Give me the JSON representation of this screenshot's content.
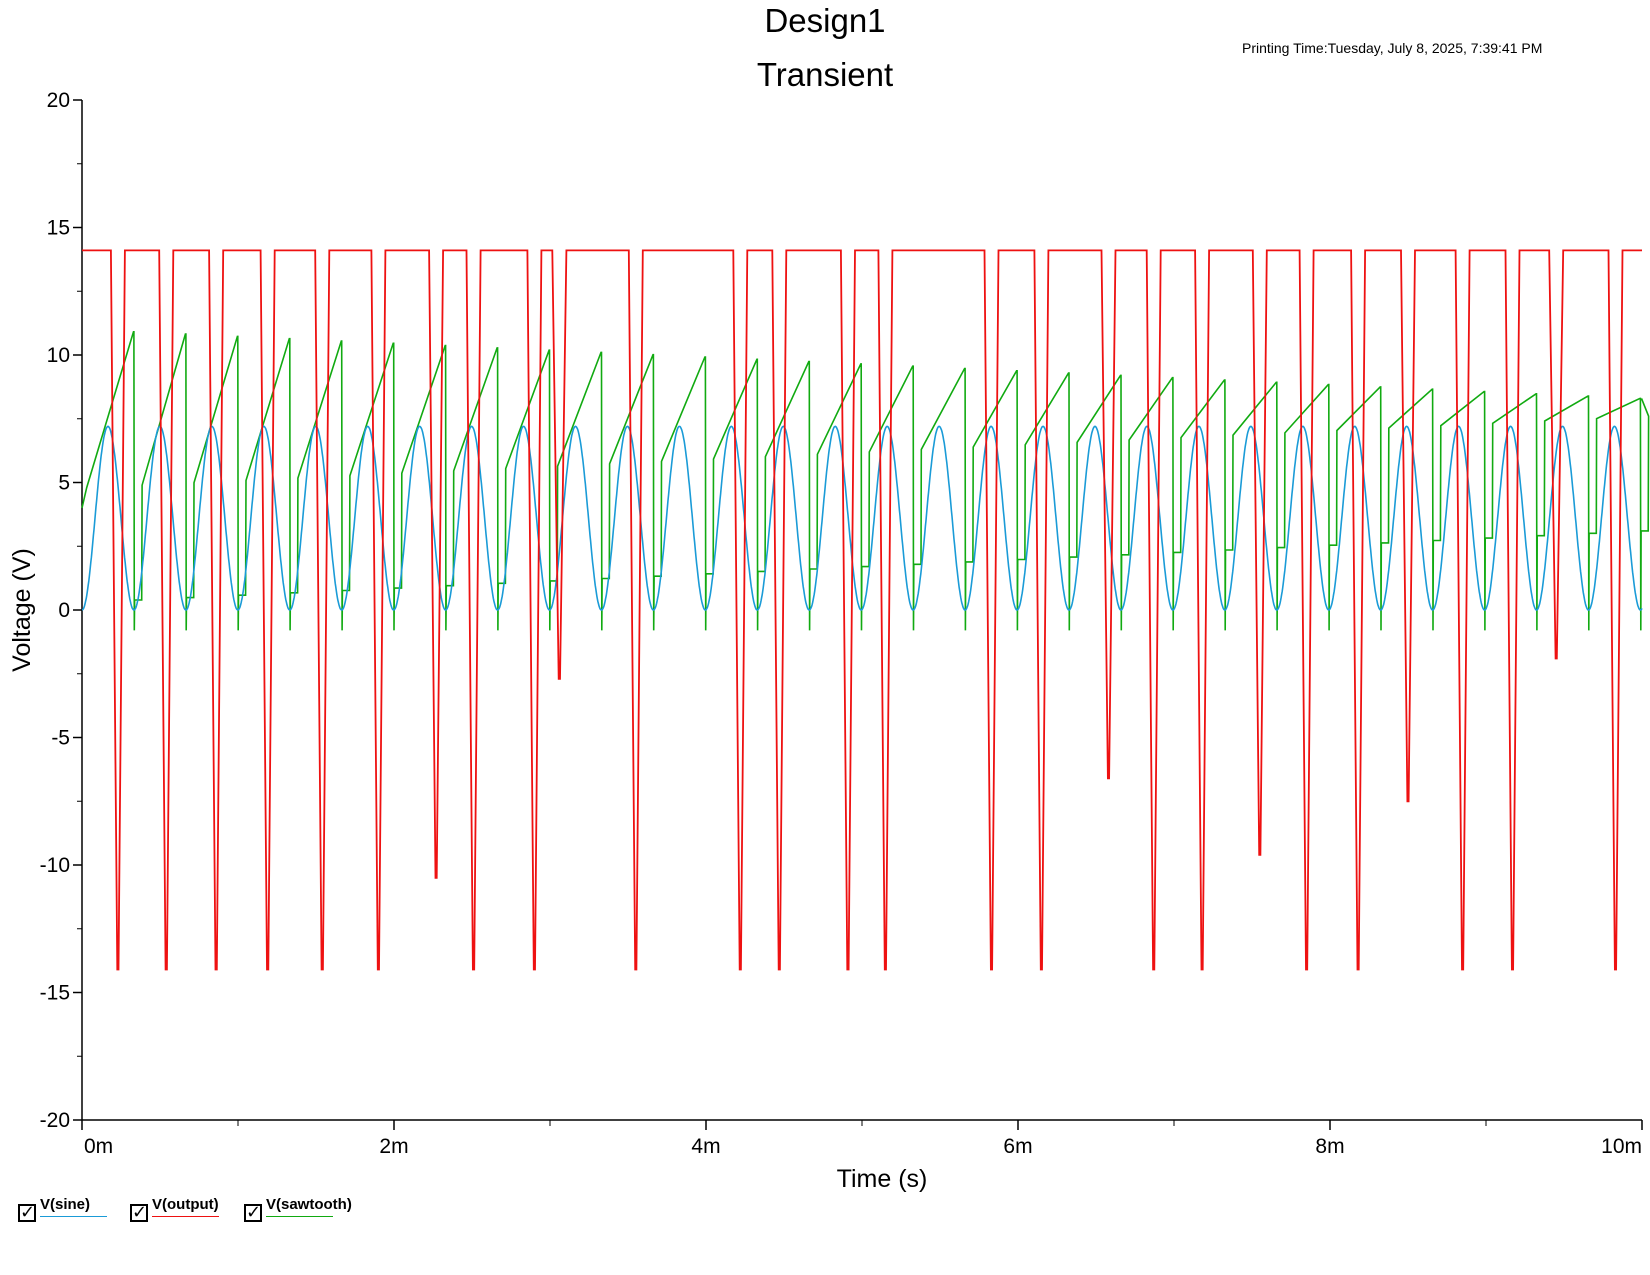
{
  "header": {
    "title": "Design1",
    "subtitle": "Transient",
    "printing_time": "Printing Time:Tuesday, July 8, 2025, 7:39:41 PM"
  },
  "chart_data": {
    "type": "line",
    "xlabel": "Time (s)",
    "ylabel": "Voltage (V)",
    "xlim": [
      0,
      10
    ],
    "ylim": [
      -20,
      20
    ],
    "x_ticks": [
      0,
      2,
      4,
      6,
      8,
      10
    ],
    "x_tick_labels": [
      "0m",
      "2m",
      "4m",
      "6m",
      "8m",
      "10m"
    ],
    "y_ticks": [
      -20,
      -15,
      -10,
      -5,
      0,
      5,
      10,
      15,
      20
    ],
    "y_tick_labels": [
      "-20",
      "-15",
      "-10",
      "-5",
      "0",
      "5",
      "10",
      "15",
      "20"
    ],
    "grid": false,
    "legend_position": "bottom-left",
    "series": [
      {
        "name": "V(sine)",
        "color": "#1a9bd7",
        "waveform": "sine",
        "offset": 3.6,
        "amplitude": 3.6,
        "period": 0.333,
        "min": 0,
        "max": 7.2
      },
      {
        "name": "V(output)",
        "color": "#ee1111",
        "waveform": "square-with-spikes",
        "high": 14.1,
        "low": -14.1,
        "low_pulse_times": [
          0.23,
          0.54,
          0.86,
          1.19,
          1.54,
          1.9,
          2.27,
          2.51,
          2.9,
          3.06,
          3.55,
          4.22,
          4.47,
          4.91,
          5.15,
          5.83,
          6.15,
          6.58,
          6.87,
          7.18,
          7.55,
          7.85,
          8.18,
          8.5,
          8.85,
          9.17,
          9.45,
          9.83
        ],
        "low_pulse_minimums": [
          -14.1,
          -14.1,
          -14.1,
          -14.1,
          -14.1,
          -14.1,
          -10.5,
          -14.1,
          -14.1,
          -2.7,
          -14.1,
          -14.1,
          -14.1,
          -14.1,
          -14.1,
          -14.1,
          -14.1,
          -6.6,
          -14.1,
          -14.1,
          -9.6,
          -14.1,
          -14.1,
          -7.5,
          -14.1,
          -14.1,
          -1.9,
          -14.1
        ]
      },
      {
        "name": "V(sawtooth)",
        "color": "#11aa11",
        "waveform": "sawtooth",
        "period": 0.333,
        "start": 4.0,
        "peaks_start": 11.0,
        "peaks_end": 8.3,
        "troughs_start": 0.3,
        "troughs_end": 3.1,
        "dip": -0.8
      }
    ]
  }
}
